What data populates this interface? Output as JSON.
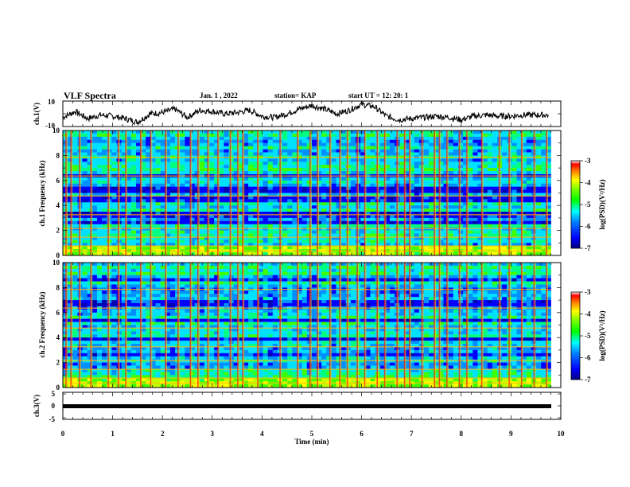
{
  "header": {
    "title": "VLF Spectra",
    "date": "Jan. 1 , 2022",
    "station": "station= KAP",
    "start": "start UT = 12: 20: 1"
  },
  "colors": {
    "colormap": [
      "#000080",
      "#0000ff",
      "#0080ff",
      "#00ffff",
      "#00ff80",
      "#00ff00",
      "#80ff00",
      "#ffff00",
      "#ff8000",
      "#ff0000",
      "#800000"
    ]
  },
  "chart_data": [
    {
      "type": "line",
      "name": "waveform-ch1",
      "ylabel": "ch.1(V)",
      "ylim": [
        -10,
        10
      ],
      "yticks": [
        "10",
        "-10"
      ],
      "xlim": [
        0,
        10
      ],
      "x": [
        0,
        0.25,
        0.5,
        0.75,
        1.0,
        1.25,
        1.5,
        1.75,
        2.0,
        2.25,
        2.5,
        2.75,
        3.0,
        3.25,
        3.5,
        3.75,
        4.0,
        4.25,
        4.5,
        4.75,
        5.0,
        5.25,
        5.5,
        5.75,
        6.0,
        6.25,
        6.5,
        6.75,
        7.0,
        7.25,
        7.5,
        7.75,
        8.0,
        8.25,
        8.5,
        8.75,
        9.0,
        9.25,
        9.5,
        9.75
      ],
      "values": [
        -3,
        2,
        -4,
        -1,
        -2,
        -4,
        -7,
        0,
        1,
        4,
        -3,
        3,
        2,
        0,
        1,
        3,
        -2,
        -3,
        0,
        4,
        7,
        4,
        0,
        3,
        8,
        6,
        -2,
        -5,
        -4,
        -3,
        -2,
        -3,
        -5,
        -2,
        -1,
        -2,
        -2,
        -1,
        -1,
        -1
      ]
    },
    {
      "type": "heatmap",
      "name": "spectrogram-ch1",
      "ylabel": "ch.1 Frequency (kHz)",
      "ylim": [
        0,
        10
      ],
      "yticks": [
        "0",
        "2",
        "4",
        "6",
        "8",
        "10"
      ],
      "xlim": [
        0,
        10
      ],
      "colorbar": {
        "label": "log(PSD)(V²/Hz)",
        "range": [
          -7,
          -3
        ],
        "ticks": [
          "-3",
          "-4",
          "-5",
          "-6",
          "-7"
        ]
      },
      "bursts_min": [
        0.05,
        0.15,
        0.32,
        0.55,
        0.9,
        1.1,
        1.25,
        1.55,
        1.75,
        2.05,
        2.3,
        2.55,
        2.7,
        2.9,
        3.1,
        3.35,
        3.5,
        3.6,
        3.9,
        4.35,
        4.7,
        4.95,
        5.1,
        5.35,
        5.55,
        5.7,
        5.9,
        6.05,
        6.3,
        6.45,
        6.7,
        6.85,
        6.95,
        7.2,
        7.45,
        7.55,
        7.7,
        7.95,
        8.1,
        8.4,
        8.75,
        8.95,
        9.2,
        9.45,
        9.7
      ],
      "quiet_bands_khz": [
        [
          5.0,
          5.5
        ],
        [
          4.3,
          4.7
        ],
        [
          3.0,
          3.4
        ],
        [
          6.2,
          6.5
        ],
        [
          2.4,
          2.7
        ]
      ]
    },
    {
      "type": "heatmap",
      "name": "spectrogram-ch2",
      "ylabel": "ch.2 Frequency (kHz)",
      "ylim": [
        0,
        10
      ],
      "yticks": [
        "0",
        "2",
        "4",
        "6",
        "8",
        "10"
      ],
      "xlim": [
        0,
        10
      ],
      "colorbar": {
        "label": "log(PSD)(V²/Hz)",
        "range": [
          -7,
          -3
        ],
        "ticks": [
          "-3",
          "-4",
          "-5",
          "-6",
          "-7"
        ]
      },
      "bursts_min": [
        0.05,
        0.15,
        0.32,
        0.55,
        0.9,
        1.1,
        1.25,
        1.55,
        1.75,
        2.05,
        2.3,
        2.55,
        2.7,
        2.9,
        3.1,
        3.35,
        3.5,
        3.6,
        3.9,
        4.35,
        4.7,
        4.95,
        5.1,
        5.35,
        5.55,
        5.7,
        5.9,
        6.05,
        6.3,
        6.45,
        6.7,
        6.85,
        6.95,
        7.2,
        7.45,
        7.55,
        7.7,
        7.95,
        8.1,
        8.4,
        8.75,
        8.95,
        9.2,
        9.45,
        9.7
      ],
      "quiet_bands_khz": [
        [
          3.7,
          4.0
        ],
        [
          2.5,
          2.8
        ],
        [
          5.3,
          5.6
        ],
        [
          6.6,
          6.9
        ],
        [
          8.5,
          8.8
        ]
      ]
    },
    {
      "type": "line",
      "name": "waveform-ch3",
      "ylabel": "ch.3(V)",
      "ylim": [
        -5,
        5
      ],
      "yticks": [
        "5",
        "0",
        "-5"
      ],
      "xlim": [
        0,
        10
      ],
      "x": [
        0,
        9.8
      ],
      "values": [
        0,
        0
      ]
    }
  ],
  "xaxis": {
    "label": "Time (min)",
    "ticks": [
      "0",
      "1",
      "2",
      "3",
      "4",
      "5",
      "6",
      "7",
      "8",
      "9",
      "10"
    ]
  }
}
